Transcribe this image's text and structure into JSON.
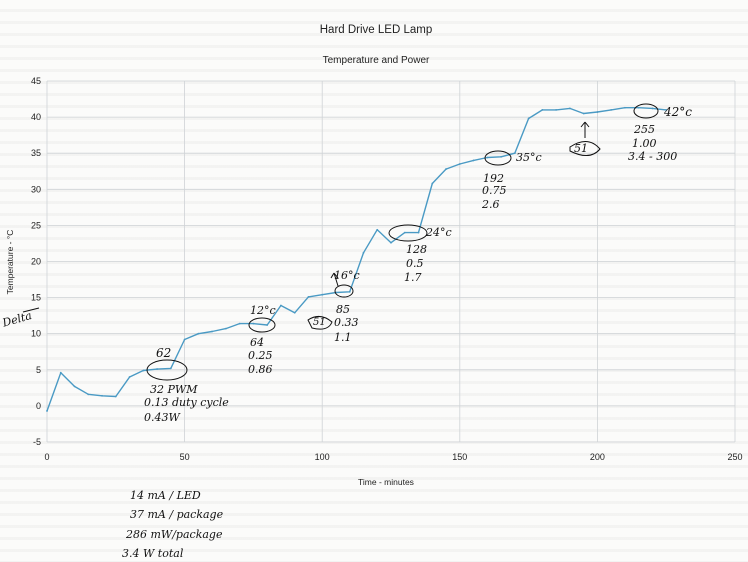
{
  "chart_data": {
    "type": "line",
    "title": "Hard Drive LED Lamp",
    "subtitle": "Temperature and Power",
    "xlabel": "Time - minutes",
    "ylabel": "Temperature - °C",
    "xlim": [
      0,
      250
    ],
    "ylim": [
      -5,
      45
    ],
    "xticks": [
      0,
      50,
      100,
      150,
      200,
      250
    ],
    "yticks": [
      -5,
      0,
      5,
      10,
      15,
      20,
      25,
      30,
      35,
      40,
      45
    ],
    "grid": true,
    "line_color": "#4a9ac4",
    "x": [
      0,
      5,
      10,
      15,
      20,
      25,
      30,
      35,
      40,
      45,
      50,
      55,
      60,
      65,
      70,
      75,
      80,
      85,
      90,
      95,
      100,
      105,
      110,
      115,
      120,
      125,
      130,
      135,
      140,
      145,
      150,
      155,
      160,
      165,
      170,
      175,
      180,
      185,
      190,
      195,
      200,
      205,
      210,
      215,
      220,
      225
    ],
    "values": [
      -0.7,
      4.6,
      2.7,
      1.6,
      1.4,
      1.3,
      4.0,
      4.9,
      5.1,
      5.2,
      9.2,
      10.0,
      10.3,
      10.7,
      11.4,
      11.4,
      11.2,
      13.9,
      12.9,
      15.1,
      15.4,
      15.7,
      15.8,
      21.2,
      24.4,
      22.6,
      24.0,
      24.0,
      30.8,
      32.8,
      33.5,
      34.0,
      34.4,
      34.5,
      35.0,
      39.8,
      41.0,
      41.0,
      41.2,
      40.5,
      40.7,
      41.0,
      41.3,
      41.3,
      41.2,
      41.0
    ]
  },
  "annotations": {
    "left_margin": "Delta",
    "p62": "62",
    "p62_a": "32 PWM",
    "p62_b": "0.13 duty cycle",
    "p62_c": "0.43W",
    "p64": "64",
    "p64_a": "0.25",
    "p64_b": "0.86",
    "t12": "12°c",
    "t16": "16°c",
    "p85": "85",
    "p85_a": "0.33",
    "p85_b": "1.1",
    "m51": "51",
    "t24": "24°c",
    "p128": "128",
    "p128_a": "0.5",
    "p128_b": "1.7",
    "t35": "35°c",
    "p192": "192",
    "p192_a": "0.75",
    "p192_b": "2.6",
    "m51b": "51",
    "t42": "42°c",
    "p255": "255",
    "p255_a": "1.00",
    "p255_b": "3.4 - 300",
    "note1": "14 mA / LED",
    "note2": "37 mA / package",
    "note3": "286 mW/package",
    "note4": "3.4 W total"
  }
}
